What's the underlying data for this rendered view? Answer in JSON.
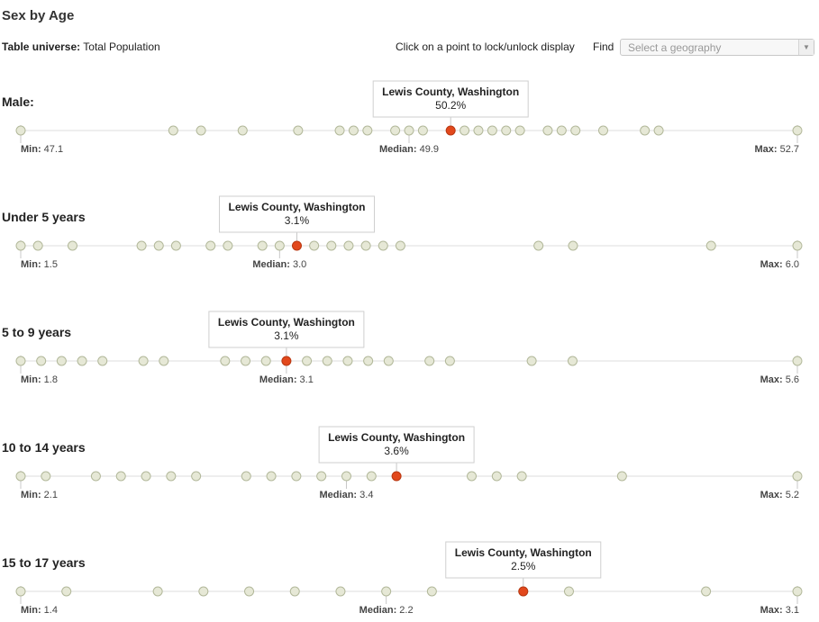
{
  "header": {
    "title": "Sex by Age",
    "universe_label": "Table universe:",
    "universe_value": "Total Population",
    "instruction": "Click on a point to lock/unlock display",
    "find_label": "Find",
    "select_placeholder": "Select a geography"
  },
  "colors": {
    "dot_fill": "#e6e8d6",
    "dot_stroke": "#b2b89a",
    "highlight": "#e2481c",
    "axis": "#dcdcdc"
  },
  "chart_data": [
    {
      "type": "scatter",
      "title": "Male:",
      "range": [
        47.1,
        52.7
      ],
      "min_label": "Min: 47.1",
      "max_label": "Max: 52.7",
      "median": 49.9,
      "median_label": "Median: 49.9",
      "values": [
        47.1,
        48.2,
        48.4,
        48.7,
        49.1,
        49.4,
        49.5,
        49.6,
        49.8,
        49.9,
        50.0,
        50.3,
        50.4,
        50.5,
        50.6,
        50.7,
        50.9,
        51.0,
        51.1,
        51.3,
        51.6,
        51.7,
        52.7
      ],
      "highlight": {
        "name": "Lewis County, Washington",
        "value": 50.2,
        "label": "50.2%"
      }
    },
    {
      "type": "scatter",
      "title": "Under 5 years",
      "range": [
        1.5,
        6.0
      ],
      "min_label": "Min: 1.5",
      "max_label": "Max: 6.0",
      "median": 3.0,
      "median_label": "Median: 3.0",
      "values": [
        1.5,
        1.6,
        1.8,
        2.2,
        2.3,
        2.4,
        2.6,
        2.7,
        2.9,
        3.0,
        3.2,
        3.3,
        3.4,
        3.5,
        3.6,
        3.7,
        4.5,
        4.7,
        5.5,
        6.0
      ],
      "highlight": {
        "name": "Lewis County, Washington",
        "value": 3.1,
        "label": "3.1%"
      }
    },
    {
      "type": "scatter",
      "title": "5 to 9 years",
      "range": [
        1.8,
        5.6
      ],
      "min_label": "Min: 1.8",
      "max_label": "Max: 5.6",
      "median": 3.1,
      "median_label": "Median: 3.1",
      "values": [
        1.8,
        1.9,
        2.0,
        2.1,
        2.2,
        2.4,
        2.5,
        2.8,
        2.9,
        3.0,
        3.2,
        3.3,
        3.4,
        3.5,
        3.6,
        3.8,
        3.9,
        4.3,
        4.5,
        5.6
      ],
      "highlight": {
        "name": "Lewis County, Washington",
        "value": 3.1,
        "label": "3.1%"
      }
    },
    {
      "type": "scatter",
      "title": "10 to 14 years",
      "range": [
        2.1,
        5.2
      ],
      "min_label": "Min: 2.1",
      "max_label": "Max: 5.2",
      "median": 3.4,
      "median_label": "Median: 3.4",
      "values": [
        2.1,
        2.2,
        2.4,
        2.5,
        2.6,
        2.7,
        2.8,
        3.0,
        3.1,
        3.2,
        3.3,
        3.4,
        3.5,
        3.9,
        4.0,
        4.1,
        4.5,
        5.2
      ],
      "highlight": {
        "name": "Lewis County, Washington",
        "value": 3.6,
        "label": "3.6%"
      }
    },
    {
      "type": "scatter",
      "title": "15 to 17 years",
      "range": [
        1.4,
        3.1
      ],
      "min_label": "Min: 1.4",
      "max_label": "Max: 3.1",
      "median": 2.2,
      "median_label": "Median: 2.2",
      "values": [
        1.4,
        1.5,
        1.7,
        1.8,
        1.9,
        2.0,
        2.1,
        2.2,
        2.3,
        2.5,
        2.6,
        2.9,
        3.1
      ],
      "highlight": {
        "name": "Lewis County, Washington",
        "value": 2.5,
        "label": "2.5%"
      }
    }
  ]
}
